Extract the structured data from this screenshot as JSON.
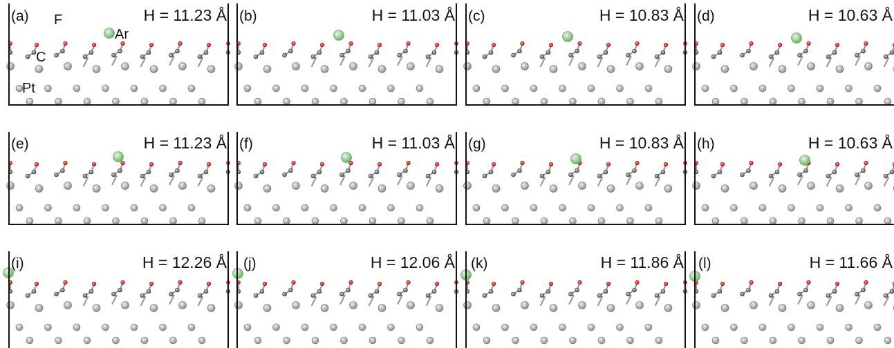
{
  "figure": {
    "panels": [
      {
        "label": "(a)",
        "height_text": "H = 11.23 Å"
      },
      {
        "label": "(b)",
        "height_text": "H = 11.03 Å"
      },
      {
        "label": "(c)",
        "height_text": "H = 10.83 Å"
      },
      {
        "label": "(d)",
        "height_text": "H = 10.63 Å"
      },
      {
        "label": "(e)",
        "height_text": "H = 11.23 Å"
      },
      {
        "label": "(f)",
        "height_text": "H = 11.03 Å"
      },
      {
        "label": "(g)",
        "height_text": "H = 10.83 Å"
      },
      {
        "label": "(h)",
        "height_text": "H = 10.63 Å"
      },
      {
        "label": "(i)",
        "height_text": "H = 12.26 Å"
      },
      {
        "label": "(j)",
        "height_text": "H = 12.06 Å"
      },
      {
        "label": "(k)",
        "height_text": "H = 11.86 Å"
      },
      {
        "label": "(l)",
        "height_text": "H = 11.66 Å"
      }
    ],
    "atom_labels": {
      "fluorine": "F",
      "carbon": "C",
      "argon": "Ar",
      "platinum": "Pt"
    },
    "colors": {
      "platinum": "#b5b5b5",
      "carbon": "#8a8a8a",
      "fluorine": "#e8231e",
      "argon": "#a6dca0",
      "frame": "#111111"
    }
  }
}
